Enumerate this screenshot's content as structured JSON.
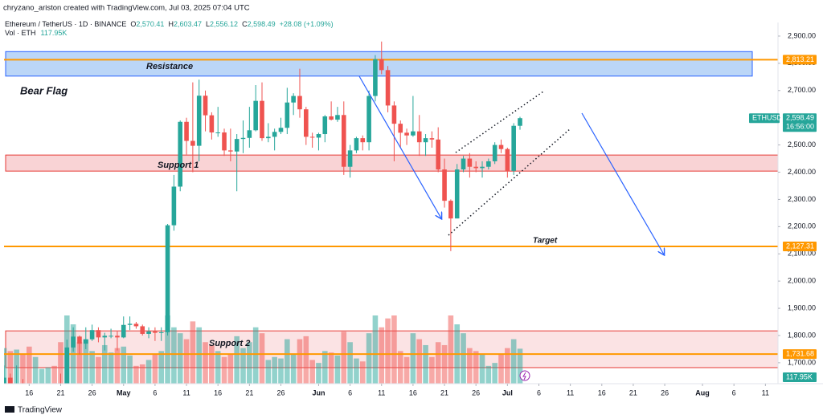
{
  "header": {
    "credit": "chryzano_ariston created with TradingView.com, Jul 03, 2025 07:04 UTC",
    "symbol": "Ethereum / TetherUS · 1D · BINANCE",
    "ohlc": [
      {
        "key": "O",
        "value": "2,570.41"
      },
      {
        "key": "H",
        "value": "2,603.47"
      },
      {
        "key": "L",
        "value": "2,556.12"
      },
      {
        "key": "C",
        "value": "2,598.49"
      }
    ],
    "change": "+28.08 (+1.09%)",
    "vol_label": "Vol · ETH",
    "vol_value": "117.95K"
  },
  "chart_data": {
    "type": "candlestick",
    "x": [
      "Apr 12",
      "Apr 13",
      "Apr 14",
      "Apr 15",
      "Apr 16",
      "Apr 17",
      "Apr 18",
      "Apr 19",
      "Apr 20",
      "Apr 21",
      "Apr 22",
      "Apr 23",
      "Apr 24",
      "Apr 25",
      "Apr 26",
      "Apr 27",
      "Apr 28",
      "Apr 29",
      "Apr 30",
      "May 1",
      "May 2",
      "May 3",
      "May 4",
      "May 5",
      "May 6",
      "May 7",
      "May 8",
      "May 9",
      "May 10",
      "May 11",
      "May 12",
      "May 13",
      "May 14",
      "May 15",
      "May 16",
      "May 17",
      "May 18",
      "May 19",
      "May 20",
      "May 21",
      "May 22",
      "May 23",
      "May 24",
      "May 25",
      "May 26",
      "May 27",
      "May 28",
      "May 29",
      "May 30",
      "May 31",
      "Jun 1",
      "Jun 2",
      "Jun 3",
      "Jun 4",
      "Jun 5",
      "Jun 6",
      "Jun 7",
      "Jun 8",
      "Jun 9",
      "Jun 10",
      "Jun 11",
      "Jun 12",
      "Jun 13",
      "Jun 14",
      "Jun 15",
      "Jun 16",
      "Jun 17",
      "Jun 18",
      "Jun 19",
      "Jun 20",
      "Jun 21",
      "Jun 22",
      "Jun 23",
      "Jun 24",
      "Jun 25",
      "Jun 26",
      "Jun 27",
      "Jun 28",
      "Jun 29",
      "Jun 30",
      "Jul 1",
      "Jul 2",
      "Jul 3"
    ],
    "open": [
      1522,
      1645,
      1595,
      1622,
      1588,
      1577,
      1583,
      1588,
      1612,
      1587,
      1578,
      1756,
      1796,
      1770,
      1786,
      1820,
      1793,
      1799,
      1799,
      1793,
      1839,
      1843,
      1834,
      1806,
      1815,
      1810,
      1812,
      2205,
      2347,
      2585,
      2515,
      2497,
      2681,
      2609,
      2546,
      2546,
      2480,
      2476,
      2522,
      2526,
      2554,
      2662,
      2525,
      2530,
      2548,
      2563,
      2656,
      2680,
      2631,
      2530,
      2527,
      2540,
      2605,
      2593,
      2610,
      2420,
      2480,
      2525,
      2510,
      2680,
      2815,
      2775,
      2645,
      2578,
      2545,
      2535,
      2550,
      2510,
      2525,
      2520,
      2410,
      2295,
      2230,
      2410,
      2450,
      2420,
      2415,
      2420,
      2440,
      2500,
      2485,
      2405,
      2570.41
    ],
    "high": [
      1690,
      1660,
      1690,
      1640,
      1615,
      1600,
      1595,
      1615,
      1620,
      1660,
      1785,
      1830,
      1800,
      1830,
      1840,
      1830,
      1810,
      1825,
      1815,
      1870,
      1870,
      1850,
      1840,
      1830,
      1830,
      1830,
      2210,
      2390,
      2590,
      2600,
      2730,
      2740,
      2700,
      2620,
      2640,
      2560,
      2560,
      2540,
      2590,
      2640,
      2720,
      2730,
      2580,
      2560,
      2600,
      2710,
      2690,
      2780,
      2640,
      2545,
      2545,
      2610,
      2660,
      2640,
      2660,
      2500,
      2530,
      2535,
      2700,
      2830,
      2880,
      2790,
      2660,
      2590,
      2560,
      2680,
      2610,
      2540,
      2550,
      2565,
      2450,
      2300,
      2430,
      2460,
      2470,
      2440,
      2440,
      2450,
      2510,
      2520,
      2490,
      2580,
      2603.47
    ],
    "low": [
      1510,
      1575,
      1590,
      1580,
      1540,
      1560,
      1575,
      1580,
      1570,
      1570,
      1565,
      1740,
      1730,
      1750,
      1780,
      1775,
      1745,
      1790,
      1745,
      1790,
      1820,
      1825,
      1800,
      1790,
      1780,
      1780,
      1800,
      2185,
      2330,
      2465,
      2400,
      2440,
      2550,
      2520,
      2530,
      2460,
      2440,
      2330,
      2470,
      2490,
      2550,
      2515,
      2510,
      2480,
      2540,
      2540,
      2610,
      2600,
      2500,
      2490,
      2480,
      2510,
      2590,
      2585,
      2390,
      2380,
      2470,
      2480,
      2480,
      2660,
      2760,
      2620,
      2440,
      2490,
      2500,
      2530,
      2460,
      2460,
      2490,
      2400,
      2270,
      2110,
      2230,
      2400,
      2380,
      2400,
      2380,
      2410,
      2430,
      2470,
      2380,
      2390,
      2556.12
    ],
    "close": [
      1645,
      1595,
      1622,
      1588,
      1577,
      1583,
      1588,
      1612,
      1587,
      1578,
      1756,
      1796,
      1770,
      1786,
      1820,
      1793,
      1799,
      1799,
      1793,
      1839,
      1843,
      1834,
      1806,
      1815,
      1810,
      1812,
      2205,
      2347,
      2585,
      2515,
      2497,
      2681,
      2609,
      2546,
      2546,
      2480,
      2476,
      2522,
      2526,
      2554,
      2662,
      2525,
      2530,
      2548,
      2563,
      2656,
      2680,
      2631,
      2530,
      2527,
      2540,
      2605,
      2593,
      2610,
      2420,
      2480,
      2525,
      2510,
      2680,
      2815,
      2775,
      2645,
      2578,
      2545,
      2535,
      2550,
      2510,
      2525,
      2520,
      2410,
      2295,
      2230,
      2410,
      2450,
      2420,
      2415,
      2420,
      2440,
      2500,
      2485,
      2405,
      2570.41,
      2598.49
    ],
    "volume": [
      120000,
      110000,
      115000,
      100000,
      125000,
      90000,
      50000,
      55000,
      60000,
      140000,
      230000,
      200000,
      140000,
      150000,
      110000,
      90000,
      130000,
      105000,
      120000,
      125000,
      95000,
      60000,
      65000,
      80000,
      100000,
      110000,
      230000,
      190000,
      170000,
      150000,
      210000,
      190000,
      140000,
      130000,
      110000,
      90000,
      100000,
      160000,
      120000,
      140000,
      190000,
      170000,
      80000,
      90000,
      85000,
      150000,
      100000,
      150000,
      160000,
      80000,
      70000,
      110000,
      105000,
      95000,
      175000,
      140000,
      85000,
      75000,
      170000,
      230000,
      190000,
      220000,
      230000,
      110000,
      90000,
      170000,
      150000,
      130000,
      90000,
      140000,
      130000,
      230000,
      200000,
      170000,
      120000,
      110000,
      100000,
      60000,
      70000,
      100000,
      120000,
      150000,
      117950
    ],
    "up_color": "#26a69a",
    "down_color": "#ef5350",
    "ylim": [
      1623,
      2950
    ],
    "yticks": [
      {
        "value": 1700,
        "label": "1,700.00"
      },
      {
        "value": 1800,
        "label": "1,800.00"
      },
      {
        "value": 1900,
        "label": "1,900.00"
      },
      {
        "value": 2000,
        "label": "2,000.00"
      },
      {
        "value": 2100,
        "label": "2,100.00"
      },
      {
        "value": 2200,
        "label": "2,200.00"
      },
      {
        "value": 2300,
        "label": "2,300.00"
      },
      {
        "value": 2400,
        "label": "2,400.00"
      },
      {
        "value": 2500,
        "label": "2,500.00"
      },
      {
        "value": 2600,
        "label": "2,600.00"
      },
      {
        "value": 2700,
        "label": "2,700.00"
      },
      {
        "value": 2800,
        "label": "2,800.00"
      },
      {
        "value": 2900,
        "label": "2,900.00"
      }
    ],
    "xlim": [
      "Apr 12",
      "Aug 13"
    ],
    "xticks": [
      {
        "value": "Apr 16",
        "label": "16"
      },
      {
        "value": "Apr 21",
        "label": "21"
      },
      {
        "value": "Apr 26",
        "label": "26"
      },
      {
        "value": "May 1",
        "label": "May"
      },
      {
        "value": "May 6",
        "label": "6"
      },
      {
        "value": "May 11",
        "label": "11"
      },
      {
        "value": "May 16",
        "label": "16"
      },
      {
        "value": "May 21",
        "label": "21"
      },
      {
        "value": "May 26",
        "label": "26"
      },
      {
        "value": "Jun 1",
        "label": "Jun"
      },
      {
        "value": "Jun 6",
        "label": "6"
      },
      {
        "value": "Jun 11",
        "label": "11"
      },
      {
        "value": "Jun 16",
        "label": "16"
      },
      {
        "value": "Jun 21",
        "label": "21"
      },
      {
        "value": "Jun 26",
        "label": "26"
      },
      {
        "value": "Jul 1",
        "label": "Jul"
      },
      {
        "value": "Jul 6",
        "label": "6"
      },
      {
        "value": "Jul 11",
        "label": "11"
      },
      {
        "value": "Jul 16",
        "label": "16"
      },
      {
        "value": "Jul 21",
        "label": "21"
      },
      {
        "value": "Jul 26",
        "label": "26"
      },
      {
        "value": "Aug 1",
        "label": "Aug"
      },
      {
        "value": "Aug 6",
        "label": "6"
      },
      {
        "value": "Aug 11",
        "label": "11"
      }
    ],
    "zones": [
      {
        "label": "Resistance",
        "from": 2753,
        "to": 2843,
        "fill": "#bbd6f7",
        "stroke": "#2962ff"
      },
      {
        "label": "Support 1",
        "from": 2404,
        "to": 2463,
        "fill": "#f9d3d5",
        "stroke": "#e53935"
      },
      {
        "label": "Support 2",
        "from": 1682,
        "to": 1817,
        "fill": "#fbe3e4",
        "stroke": "#e53935"
      }
    ],
    "levels": [
      {
        "value": 2813.21,
        "label": "2,813.21",
        "color": "#ff9800"
      },
      {
        "value": 2127.31,
        "label": "2,127.31",
        "color": "#ff9800"
      },
      {
        "value": 1731.68,
        "label": "1,731.68",
        "color": "#ff9800"
      }
    ],
    "annotations": {
      "pattern": "Bear Flag",
      "target": "Target"
    },
    "symbol_tag": "ETHUSDT",
    "last_price_label": "2,598.49",
    "countdown": "16:56:00",
    "volume_tag": "117.95K"
  },
  "footer": {
    "brand": "TradingView"
  }
}
